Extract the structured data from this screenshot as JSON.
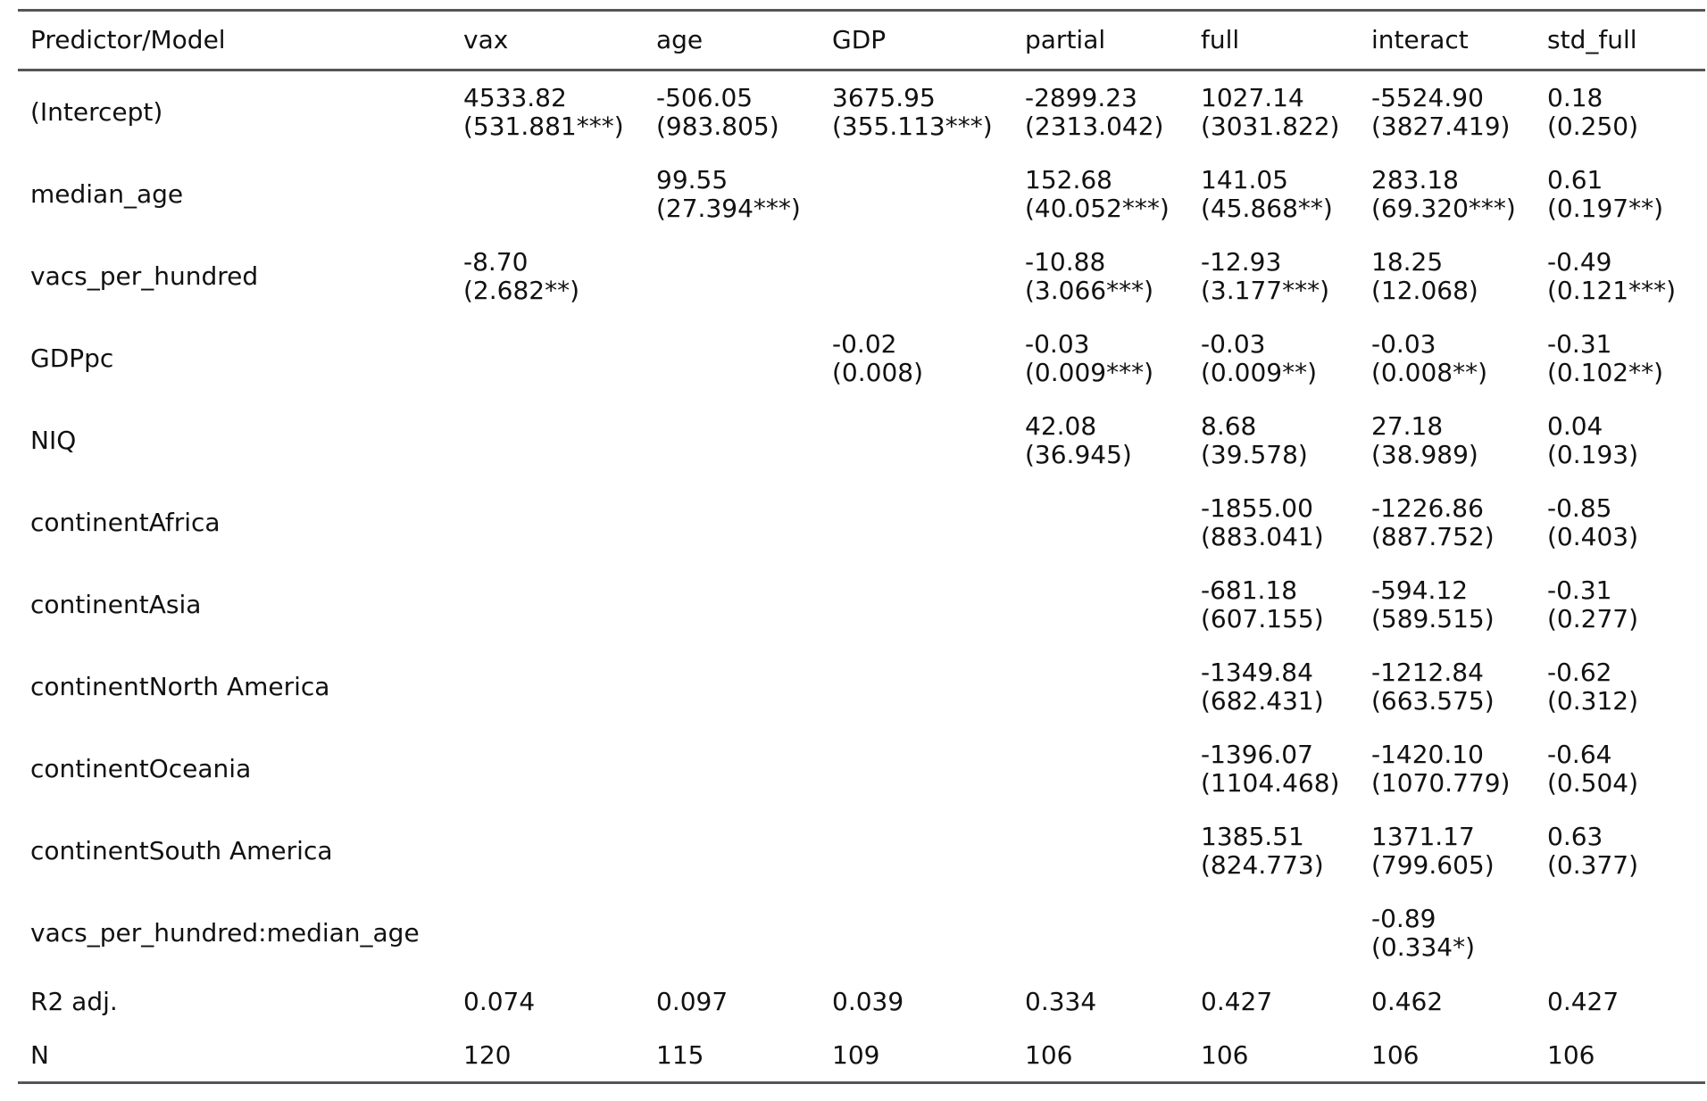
{
  "table": {
    "headers": [
      "Predictor/Model",
      "vax",
      "age",
      "GDP",
      "partial",
      "full",
      "interact",
      "std_full"
    ],
    "rows": [
      {
        "predictor": "(Intercept)",
        "cells": [
          {
            "coef": "4533.82",
            "se": "(531.881***)"
          },
          {
            "coef": "-506.05",
            "se": "(983.805)"
          },
          {
            "coef": "3675.95",
            "se": "(355.113***)"
          },
          {
            "coef": "-2899.23",
            "se": "(2313.042)"
          },
          {
            "coef": "1027.14",
            "se": "(3031.822)"
          },
          {
            "coef": "-5524.90",
            "se": "(3827.419)"
          },
          {
            "coef": "0.18",
            "se": "(0.250)"
          }
        ]
      },
      {
        "predictor": "median_age",
        "cells": [
          {
            "coef": "",
            "se": ""
          },
          {
            "coef": "99.55",
            "se": "(27.394***)"
          },
          {
            "coef": "",
            "se": ""
          },
          {
            "coef": "152.68",
            "se": "(40.052***)"
          },
          {
            "coef": "141.05",
            "se": "(45.868**)"
          },
          {
            "coef": "283.18",
            "se": "(69.320***)"
          },
          {
            "coef": "0.61",
            "se": "(0.197**)"
          }
        ]
      },
      {
        "predictor": "vacs_per_hundred",
        "cells": [
          {
            "coef": "-8.70",
            "se": "(2.682**)"
          },
          {
            "coef": "",
            "se": ""
          },
          {
            "coef": "",
            "se": ""
          },
          {
            "coef": "-10.88",
            "se": "(3.066***)"
          },
          {
            "coef": "-12.93",
            "se": "(3.177***)"
          },
          {
            "coef": "18.25",
            "se": "(12.068)"
          },
          {
            "coef": "-0.49",
            "se": "(0.121***)"
          }
        ]
      },
      {
        "predictor": "GDPpc",
        "cells": [
          {
            "coef": "",
            "se": ""
          },
          {
            "coef": "",
            "se": ""
          },
          {
            "coef": "-0.02",
            "se": "(0.008)"
          },
          {
            "coef": "-0.03",
            "se": "(0.009***)"
          },
          {
            "coef": "-0.03",
            "se": "(0.009**)"
          },
          {
            "coef": "-0.03",
            "se": "(0.008**)"
          },
          {
            "coef": "-0.31",
            "se": "(0.102**)"
          }
        ]
      },
      {
        "predictor": "NIQ",
        "cells": [
          {
            "coef": "",
            "se": ""
          },
          {
            "coef": "",
            "se": ""
          },
          {
            "coef": "",
            "se": ""
          },
          {
            "coef": "42.08",
            "se": "(36.945)"
          },
          {
            "coef": "8.68",
            "se": "(39.578)"
          },
          {
            "coef": "27.18",
            "se": "(38.989)"
          },
          {
            "coef": "0.04",
            "se": "(0.193)"
          }
        ]
      },
      {
        "predictor": "continentAfrica",
        "cells": [
          {
            "coef": "",
            "se": ""
          },
          {
            "coef": "",
            "se": ""
          },
          {
            "coef": "",
            "se": ""
          },
          {
            "coef": "",
            "se": ""
          },
          {
            "coef": "-1855.00",
            "se": "(883.041)"
          },
          {
            "coef": "-1226.86",
            "se": "(887.752)"
          },
          {
            "coef": "-0.85",
            "se": "(0.403)"
          }
        ]
      },
      {
        "predictor": "continentAsia",
        "cells": [
          {
            "coef": "",
            "se": ""
          },
          {
            "coef": "",
            "se": ""
          },
          {
            "coef": "",
            "se": ""
          },
          {
            "coef": "",
            "se": ""
          },
          {
            "coef": "-681.18",
            "se": "(607.155)"
          },
          {
            "coef": "-594.12",
            "se": "(589.515)"
          },
          {
            "coef": "-0.31",
            "se": "(0.277)"
          }
        ]
      },
      {
        "predictor": "continentNorth America",
        "cells": [
          {
            "coef": "",
            "se": ""
          },
          {
            "coef": "",
            "se": ""
          },
          {
            "coef": "",
            "se": ""
          },
          {
            "coef": "",
            "se": ""
          },
          {
            "coef": "-1349.84",
            "se": "(682.431)"
          },
          {
            "coef": "-1212.84",
            "se": "(663.575)"
          },
          {
            "coef": "-0.62",
            "se": "(0.312)"
          }
        ]
      },
      {
        "predictor": "continentOceania",
        "cells": [
          {
            "coef": "",
            "se": ""
          },
          {
            "coef": "",
            "se": ""
          },
          {
            "coef": "",
            "se": ""
          },
          {
            "coef": "",
            "se": ""
          },
          {
            "coef": "-1396.07",
            "se": "(1104.468)"
          },
          {
            "coef": "-1420.10",
            "se": "(1070.779)"
          },
          {
            "coef": "-0.64",
            "se": "(0.504)"
          }
        ]
      },
      {
        "predictor": "continentSouth America",
        "cells": [
          {
            "coef": "",
            "se": ""
          },
          {
            "coef": "",
            "se": ""
          },
          {
            "coef": "",
            "se": ""
          },
          {
            "coef": "",
            "se": ""
          },
          {
            "coef": "1385.51",
            "se": "(824.773)"
          },
          {
            "coef": "1371.17",
            "se": "(799.605)"
          },
          {
            "coef": "0.63",
            "se": "(0.377)"
          }
        ]
      },
      {
        "predictor": "vacs_per_hundred:median_age",
        "cells": [
          {
            "coef": "",
            "se": ""
          },
          {
            "coef": "",
            "se": ""
          },
          {
            "coef": "",
            "se": ""
          },
          {
            "coef": "",
            "se": ""
          },
          {
            "coef": "",
            "se": ""
          },
          {
            "coef": "-0.89",
            "se": "(0.334*)"
          },
          {
            "coef": "",
            "se": ""
          }
        ]
      }
    ],
    "r2": {
      "label": "R2 adj.",
      "values": [
        "0.074",
        "0.097",
        "0.039",
        "0.334",
        "0.427",
        "0.462",
        "0.427"
      ]
    },
    "n": {
      "label": "N",
      "values": [
        "120",
        "115",
        "109",
        "106",
        "106",
        "106",
        "106"
      ]
    }
  }
}
